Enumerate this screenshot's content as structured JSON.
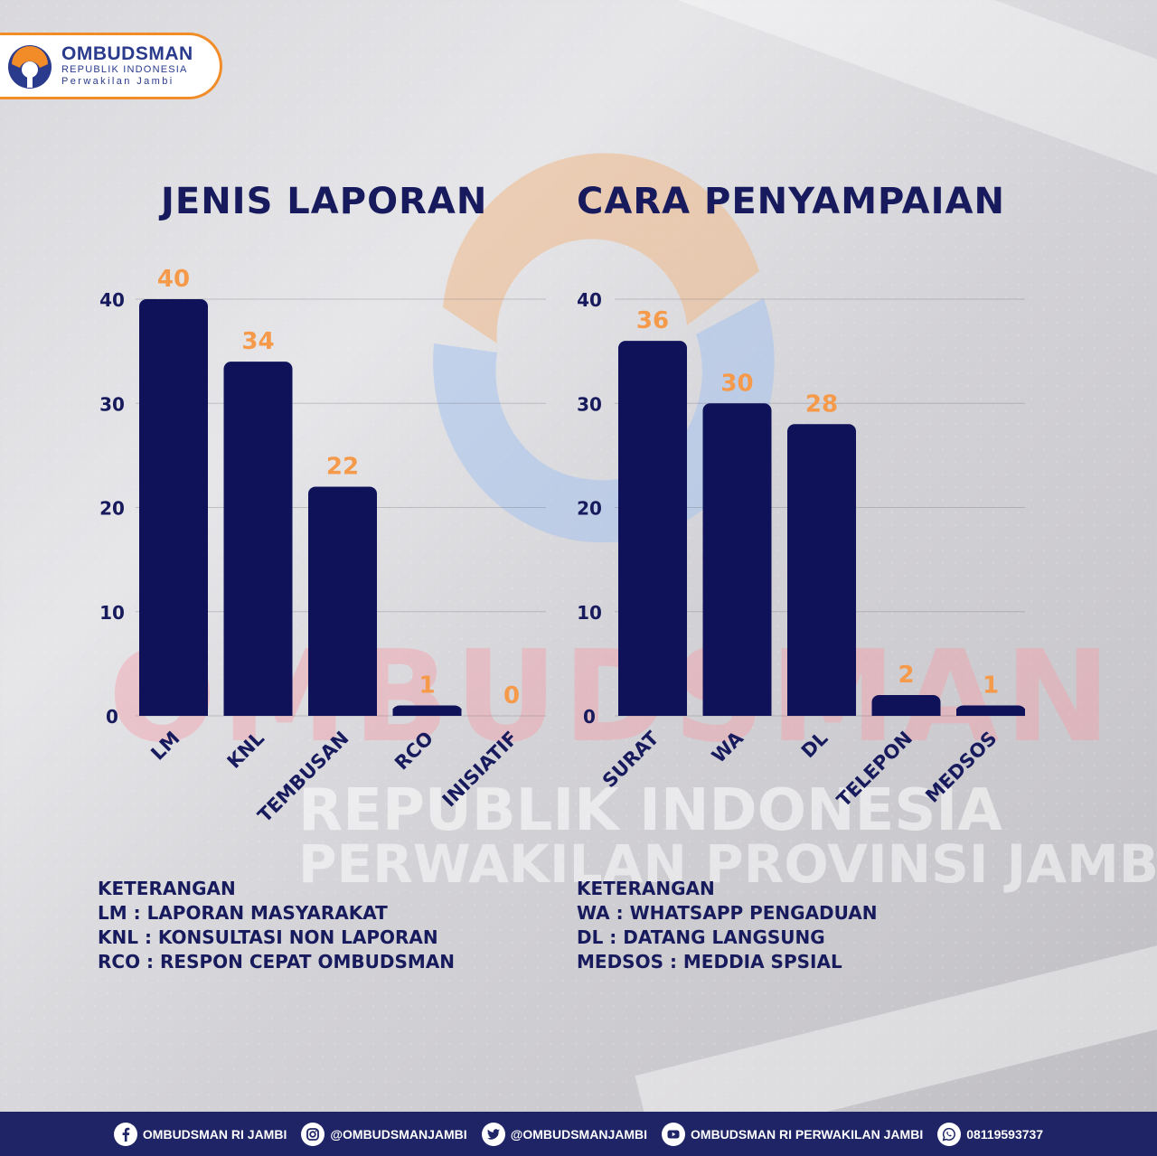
{
  "header": {
    "logo_title": "OMBUDSMAN",
    "logo_sub1": "REPUBLIK INDONESIA",
    "logo_sub2": "Perwakilan Jambi"
  },
  "watermark": {
    "big": "OMBUDSMAN",
    "line1": "REPUBLIK INDONESIA",
    "line2": "PERWAKILAN PROVINSI JAMBI"
  },
  "colors": {
    "bar": "#0f1259",
    "value_label": "#f59a4a",
    "title": "#171a5c",
    "footer": "#1e2466"
  },
  "chart_data": [
    {
      "type": "bar",
      "title": "JENIS LAPORAN",
      "categories": [
        "LM",
        "KNL",
        "TEMBUSAN",
        "RCO",
        "INISIATIF"
      ],
      "values": [
        40,
        34,
        22,
        1,
        0
      ],
      "yticks": [
        0,
        10,
        20,
        30,
        40
      ],
      "ylim": [
        0,
        40
      ],
      "grid": true
    },
    {
      "type": "bar",
      "title": "CARA PENYAMPAIAN",
      "categories": [
        "SURAT",
        "WA",
        "DL",
        "TELEPON",
        "MEDSOS"
      ],
      "values": [
        36,
        30,
        28,
        2,
        1
      ],
      "yticks": [
        0,
        10,
        20,
        30,
        40
      ],
      "ylim": [
        0,
        40
      ],
      "grid": true
    }
  ],
  "legend_left": {
    "heading": "KETERANGAN",
    "items": [
      "LM : LAPORAN MASYARAKAT",
      "KNL : KONSULTASI NON LAPORAN",
      "RCO : RESPON CEPAT OMBUDSMAN"
    ]
  },
  "legend_right": {
    "heading": "KETERANGAN",
    "items": [
      "WA : WHATSAPP PENGADUAN",
      "DL : DATANG LANGSUNG",
      "MEDSOS : MEDDIA SPSIAL"
    ]
  },
  "footer": {
    "items": [
      {
        "icon": "facebook-icon",
        "text": "OMBUDSMAN RI JAMBI"
      },
      {
        "icon": "instagram-icon",
        "text": "@OMBUDSMANJAMBI"
      },
      {
        "icon": "twitter-icon",
        "text": "@OMBUDSMANJAMBI"
      },
      {
        "icon": "youtube-icon",
        "text": "OMBUDSMAN RI PERWAKILAN JAMBI"
      },
      {
        "icon": "whatsapp-icon",
        "text": "08119593737"
      }
    ]
  }
}
